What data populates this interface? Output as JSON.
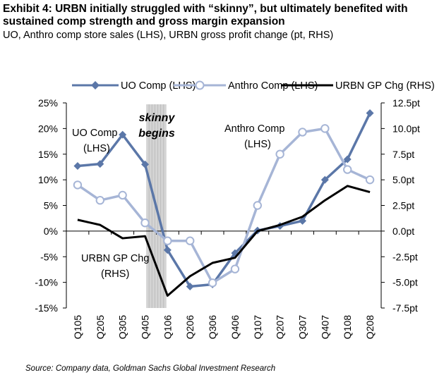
{
  "title": "Exhibit 4: URBN initially struggled with “skinny”, but ultimately benefited with sustained comp strength and gross margin expansion",
  "subtitle": "UO, Anthro comp store sales (LHS), URBN gross profit change (pt, RHS)",
  "source": "Source: Company data, Goldman Sachs Global Investment Research",
  "chart_data": {
    "type": "line",
    "categories": [
      "Q105",
      "Q205",
      "Q305",
      "Q405",
      "Q106",
      "Q206",
      "Q306",
      "Q406",
      "Q107",
      "Q207",
      "Q307",
      "Q407",
      "Q108",
      "Q208"
    ],
    "y_left": {
      "ticks": [
        25,
        20,
        15,
        10,
        5,
        0,
        -5,
        -10,
        -15
      ],
      "tick_labels": [
        "25%",
        "20%",
        "15%",
        "10%",
        "5%",
        "0%",
        "-5%",
        "-10%",
        "-15%"
      ],
      "range": [
        -15,
        25
      ]
    },
    "y_right": {
      "ticks": [
        12.5,
        10,
        7.5,
        5,
        2.5,
        0,
        -2.5,
        -5,
        -7.5
      ],
      "tick_labels": [
        "12.5pt",
        "10.0pt",
        "7.5pt",
        "5.0pt",
        "2.5pt",
        "0.0pt",
        "-2.5pt",
        "-5.0pt",
        "-7.5pt"
      ],
      "range": [
        -7.5,
        12.5
      ]
    },
    "series": [
      {
        "name": "UO Comp (LHS)",
        "axis": "left",
        "color": "#5b77a8",
        "values": [
          12.7,
          13.1,
          18.8,
          13.0,
          -3.7,
          -10.8,
          -10.4,
          -4.3,
          0.1,
          1.0,
          2.0,
          10.0,
          14.0,
          23.0
        ]
      },
      {
        "name": "Anthro Comp (LHS)",
        "axis": "left",
        "color": "#a6b5d6",
        "values": [
          9.0,
          6.0,
          7.0,
          1.6,
          -1.9,
          -1.9,
          -10.1,
          -7.4,
          5.0,
          15.0,
          19.3,
          20.0,
          12.0,
          10.0
        ]
      },
      {
        "name": "URBN GP Chg (RHS)",
        "axis": "right",
        "color": "#000000",
        "values": [
          1.1,
          0.6,
          -0.7,
          -0.5,
          -6.3,
          -4.4,
          -3.1,
          -2.6,
          0.0,
          0.6,
          1.4,
          3.0,
          4.4,
          3.8
        ]
      }
    ],
    "shaded_band": {
      "from": "Q405",
      "to": "Q106"
    },
    "annotations": [
      {
        "text_lines": [
          "skinny",
          "begins"
        ],
        "style": "bold italic"
      },
      {
        "text_lines": [
          "UO Comp",
          "(LHS)"
        ]
      },
      {
        "text_lines": [
          "Anthro Comp",
          "(LHS)"
        ]
      },
      {
        "text_lines": [
          "URBN GP Chg",
          "(RHS)"
        ]
      }
    ],
    "legend_position": "top",
    "grid": false
  }
}
